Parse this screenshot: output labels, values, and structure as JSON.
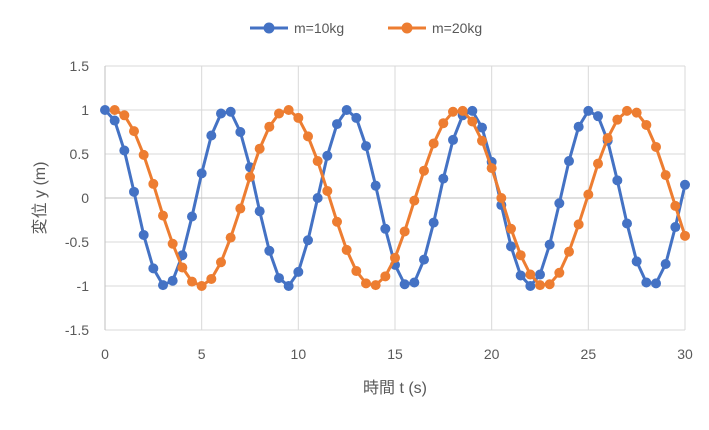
{
  "chart_data": {
    "type": "line",
    "title": "",
    "xlabel": "時間 t (s)",
    "ylabel": "変位 y (m)",
    "xlim": [
      0,
      30
    ],
    "ylim": [
      -1.5,
      1.5
    ],
    "xticks": [
      0,
      5,
      10,
      15,
      20,
      25,
      30
    ],
    "yticks": [
      1.5,
      1,
      0.5,
      0,
      -0.5,
      -1,
      -1.5
    ],
    "grid": true,
    "legend": "top",
    "series": [
      {
        "name": "m=10kg",
        "color": "#4472C4",
        "x_start": 0,
        "x_step": 0.5,
        "values": [
          1,
          0.88,
          0.54,
          0.07,
          -0.42,
          -0.8,
          -0.99,
          -0.94,
          -0.65,
          -0.21,
          0.28,
          0.71,
          0.96,
          0.98,
          0.75,
          0.35,
          -0.15,
          -0.6,
          -0.91,
          -1.0,
          -0.84,
          -0.48,
          0.0,
          0.48,
          0.84,
          1.0,
          0.91,
          0.59,
          0.14,
          -0.35,
          -0.76,
          -0.98,
          -0.96,
          -0.7,
          -0.28,
          0.22,
          0.66,
          0.94,
          0.99,
          0.8,
          0.41,
          -0.08,
          -0.55,
          -0.88,
          -1.0,
          -0.87,
          -0.53,
          -0.06,
          0.42,
          0.81,
          0.99,
          0.93,
          0.65,
          0.2,
          -0.29,
          -0.72,
          -0.96,
          -0.97,
          -0.75,
          -0.33,
          0.15
        ]
      },
      {
        "name": "m=20kg",
        "color": "#ED7D31",
        "x_start": 0.5,
        "x_step": 0.5,
        "values": [
          1,
          0.94,
          0.76,
          0.49,
          0.16,
          -0.2,
          -0.52,
          -0.79,
          -0.95,
          -1.0,
          -0.92,
          -0.73,
          -0.45,
          -0.12,
          0.24,
          0.56,
          0.81,
          0.96,
          1.0,
          0.91,
          0.7,
          0.42,
          0.08,
          -0.27,
          -0.59,
          -0.83,
          -0.97,
          -0.99,
          -0.89,
          -0.68,
          -0.38,
          -0.03,
          0.31,
          0.62,
          0.85,
          0.98,
          0.99,
          0.87,
          0.65,
          0.34,
          0.0,
          -0.35,
          -0.65,
          -0.87,
          -0.99,
          -0.98,
          -0.85,
          -0.61,
          -0.3,
          0.04,
          0.39,
          0.68,
          0.89,
          0.99,
          0.97,
          0.83,
          0.58,
          0.26,
          -0.09,
          -0.43
        ]
      }
    ]
  }
}
